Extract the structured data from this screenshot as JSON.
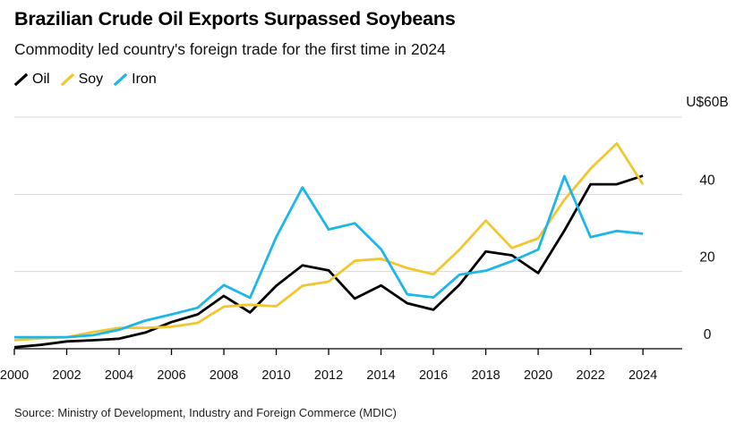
{
  "header": {
    "title": "Brazilian Crude Oil Exports Surpassed Soybeans",
    "subtitle": "Commodity led country's foreign trade for the first time in 2024"
  },
  "footer": {
    "source": "Source: Ministry of Development, Industry and Foreign Commerce (MDIC)"
  },
  "colors": {
    "oil": "#000000",
    "soy": "#f2c62f",
    "iron": "#1cb6ea",
    "grid": "#d8d8d8",
    "axis": "#000000"
  },
  "chart_data": {
    "type": "line",
    "title": "Brazilian Crude Oil Exports Surpassed Soybeans",
    "subtitle": "Commodity led country's foreign trade for the first time in 2024",
    "xlabel": "",
    "ylabel": "",
    "y_unit_label": "U$60B",
    "x": [
      2000,
      2001,
      2002,
      2003,
      2004,
      2005,
      2006,
      2007,
      2008,
      2009,
      2010,
      2011,
      2012,
      2013,
      2014,
      2015,
      2016,
      2017,
      2018,
      2019,
      2020,
      2021,
      2022,
      2023,
      2024
    ],
    "x_ticks": [
      "2000",
      "2002",
      "2004",
      "2006",
      "2008",
      "2010",
      "2012",
      "2014",
      "2016",
      "2018",
      "2020",
      "2022",
      "2024"
    ],
    "y_ticks": [
      "0",
      "20",
      "40"
    ],
    "y_tick_values": [
      0,
      20,
      40
    ],
    "ylim": [
      0,
      60
    ],
    "xlim": [
      2000,
      2025.5
    ],
    "grid": true,
    "legend_position": "top-left",
    "series": [
      {
        "name": "Oil",
        "color": "#000000",
        "values": [
          0.4,
          1.0,
          1.9,
          2.2,
          2.6,
          4.2,
          6.9,
          8.9,
          13.7,
          9.4,
          16.3,
          21.6,
          20.3,
          13.0,
          16.4,
          11.8,
          10.1,
          16.6,
          25.2,
          24.2,
          19.6,
          30.6,
          42.6,
          42.6,
          44.8
        ]
      },
      {
        "name": "Soy",
        "color": "#f2c62f",
        "values": [
          2.2,
          2.7,
          3.0,
          4.3,
          5.4,
          5.4,
          5.7,
          6.7,
          10.9,
          11.4,
          11.0,
          16.3,
          17.4,
          22.8,
          23.3,
          20.9,
          19.3,
          25.7,
          33.2,
          26.1,
          28.6,
          38.6,
          46.6,
          53.2,
          42.6
        ]
      },
      {
        "name": "Iron",
        "color": "#1cb6ea",
        "values": [
          3.0,
          3.0,
          3.0,
          3.5,
          4.9,
          7.3,
          8.9,
          10.6,
          16.5,
          13.2,
          28.9,
          41.8,
          30.9,
          32.5,
          25.8,
          14.1,
          13.3,
          19.2,
          20.2,
          22.7,
          25.7,
          44.7,
          28.9,
          30.5,
          29.8
        ]
      }
    ]
  }
}
